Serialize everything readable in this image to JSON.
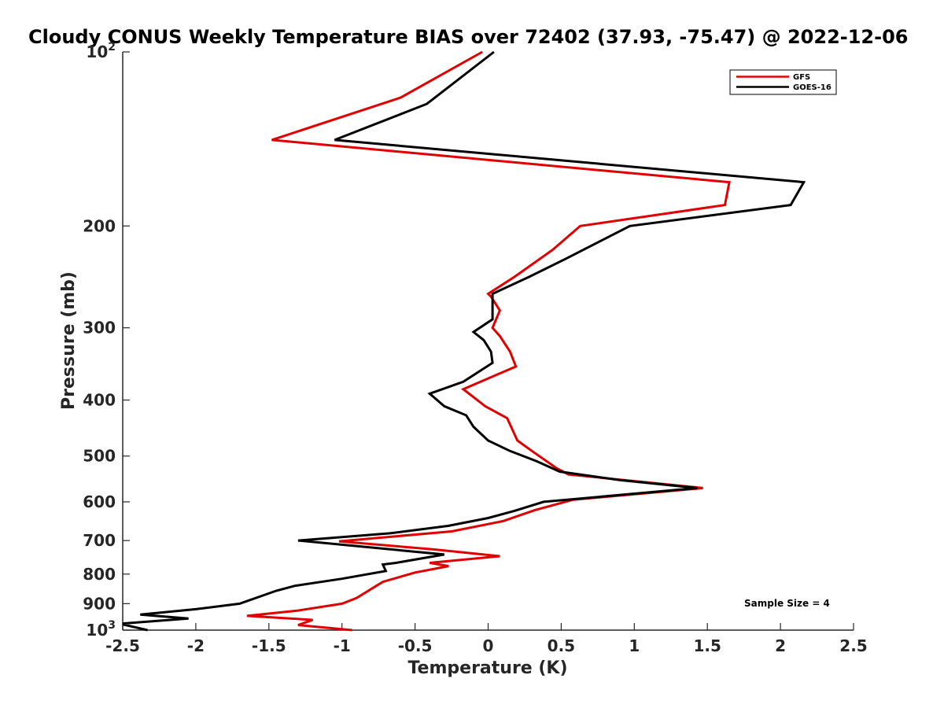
{
  "chart_data": {
    "type": "line",
    "title": "Cloudy CONUS Weekly Temperature BIAS over 72402 (37.93, -75.47) @ 2022-12-06",
    "xlabel": "Temperature (K)",
    "ylabel": "Pressure (mb)",
    "xlim": [
      -2.5,
      2.5
    ],
    "ylim": [
      100,
      1000
    ],
    "y_scale": "log",
    "y_reversed": true,
    "grid": false,
    "legend_position": "top-right",
    "x_ticks": [
      "-2.5",
      "-2",
      "-1.5",
      "-1",
      "-0.5",
      "0",
      "0.5",
      "1",
      "1.5",
      "2",
      "2.5"
    ],
    "x_tick_values": [
      -2.5,
      -2,
      -1.5,
      -1,
      -0.5,
      0,
      0.5,
      1,
      1.5,
      2,
      2.5
    ],
    "y_ticks": [
      {
        "value": 100,
        "base": "10",
        "exp": "2"
      },
      {
        "value": 200,
        "label": "200"
      },
      {
        "value": 300,
        "label": "300"
      },
      {
        "value": 400,
        "label": "400"
      },
      {
        "value": 500,
        "label": "500"
      },
      {
        "value": 600,
        "label": "600"
      },
      {
        "value": 700,
        "label": "700"
      },
      {
        "value": 800,
        "label": "800"
      },
      {
        "value": 900,
        "label": "900"
      },
      {
        "value": 1000,
        "base": "10",
        "exp": "3"
      }
    ],
    "annotation": "Sample Size = 4",
    "series": [
      {
        "name": "GFS",
        "color": "#e00000",
        "points": [
          [
            -0.04,
            100
          ],
          [
            -0.6,
            120
          ],
          [
            -1.48,
            142
          ],
          [
            1.65,
            168
          ],
          [
            1.62,
            184
          ],
          [
            0.63,
            200
          ],
          [
            0.44,
            220
          ],
          [
            0.18,
            245
          ],
          [
            0.0,
            262
          ],
          [
            0.02,
            265
          ],
          [
            0.08,
            280
          ],
          [
            0.03,
            300
          ],
          [
            0.08,
            310
          ],
          [
            0.15,
            330
          ],
          [
            0.19,
            350
          ],
          [
            -0.17,
            383
          ],
          [
            -0.02,
            410
          ],
          [
            0.13,
            430
          ],
          [
            0.2,
            470
          ],
          [
            0.3,
            490
          ],
          [
            0.47,
            525
          ],
          [
            0.55,
            538
          ],
          [
            1.47,
            568
          ],
          [
            0.58,
            595
          ],
          [
            0.32,
            620
          ],
          [
            0.1,
            648
          ],
          [
            -0.25,
            675
          ],
          [
            -1.02,
            702
          ],
          [
            -0.38,
            725
          ],
          [
            0.08,
            745
          ],
          [
            -0.4,
            765
          ],
          [
            -0.27,
            775
          ],
          [
            -0.5,
            795
          ],
          [
            -0.72,
            825
          ],
          [
            -0.77,
            840
          ],
          [
            -0.9,
            880
          ],
          [
            -1.0,
            900
          ],
          [
            -1.3,
            925
          ],
          [
            -1.65,
            945
          ],
          [
            -1.2,
            960
          ],
          [
            -1.3,
            980
          ],
          [
            -0.93,
            1000
          ]
        ]
      },
      {
        "name": "GOES-16",
        "color": "#000000",
        "points": [
          [
            0.04,
            100
          ],
          [
            -0.42,
            123
          ],
          [
            -1.05,
            142
          ],
          [
            2.16,
            168
          ],
          [
            2.07,
            184
          ],
          [
            0.97,
            200
          ],
          [
            0.53,
            228
          ],
          [
            0.28,
            245
          ],
          [
            0.03,
            262
          ],
          [
            0.03,
            265
          ],
          [
            0.03,
            290
          ],
          [
            -0.1,
            305
          ],
          [
            -0.03,
            315
          ],
          [
            0.02,
            330
          ],
          [
            0.03,
            345
          ],
          [
            -0.17,
            372
          ],
          [
            -0.4,
            390
          ],
          [
            -0.3,
            410
          ],
          [
            -0.15,
            425
          ],
          [
            -0.1,
            445
          ],
          [
            0.0,
            470
          ],
          [
            0.15,
            490
          ],
          [
            0.33,
            510
          ],
          [
            0.49,
            532
          ],
          [
            0.9,
            550
          ],
          [
            1.43,
            568
          ],
          [
            0.38,
            600
          ],
          [
            0.18,
            622
          ],
          [
            0.0,
            640
          ],
          [
            -0.27,
            660
          ],
          [
            -0.67,
            680
          ],
          [
            -1.3,
            700
          ],
          [
            -0.3,
            740
          ],
          [
            -0.63,
            765
          ],
          [
            -0.72,
            770
          ],
          [
            -0.7,
            790
          ],
          [
            -1.0,
            815
          ],
          [
            -1.32,
            838
          ],
          [
            -1.45,
            855
          ],
          [
            -1.7,
            900
          ],
          [
            -2.0,
            920
          ],
          [
            -2.38,
            940
          ],
          [
            -2.05,
            955
          ],
          [
            -2.52,
            975
          ],
          [
            -2.33,
            1000
          ]
        ]
      }
    ]
  }
}
